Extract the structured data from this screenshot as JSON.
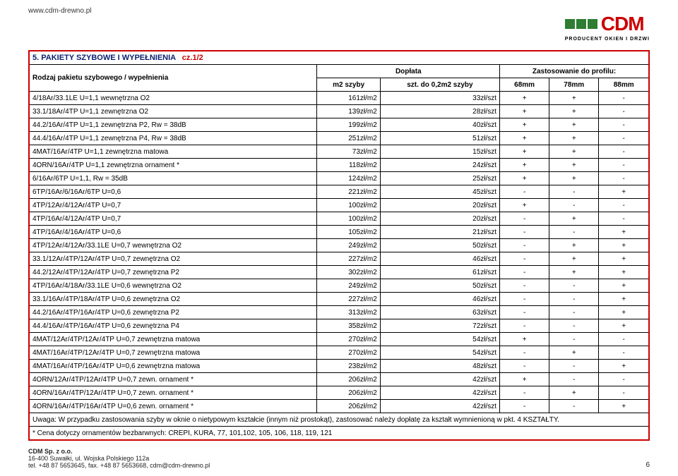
{
  "url": "www.cdm-drewno.pl",
  "logo": {
    "text": "CDM",
    "sub": "PRODUCENT OKIEN I DRZWI",
    "square_color": "#2e7d32",
    "text_color": "#c00000"
  },
  "title": {
    "main": "5. PAKIETY SZYBOWE I WYPEŁNIENIA",
    "part": "cz.1/2"
  },
  "header": {
    "col0": "Rodzaj pakietu szybowego / wypełnienia",
    "doplata": "Dopłata",
    "zast": "Zastosowanie do profilu:",
    "m2": "m2 szyby",
    "szt": "szt. do 0,2m2 szyby",
    "p68": "68mm",
    "p78": "78mm",
    "p88": "88mm"
  },
  "columns_align": [
    "left",
    "right",
    "right",
    "center",
    "center",
    "center"
  ],
  "rows": [
    [
      "4/18Ar/33.1LE U=1,1 wewnętrzna O2",
      "161zł/m2",
      "33zł/szt",
      "+",
      "+",
      "-"
    ],
    [
      "33.1/18Ar/4TP U=1,1 zewnętrzna O2",
      "139zł/m2",
      "28zł/szt",
      "+",
      "+",
      "-"
    ],
    [
      "44.2/16Ar/4TP U=1,1 zewnętrzna P2, Rw = 38dB",
      "199zł/m2",
      "40zł/szt",
      "+",
      "+",
      "-"
    ],
    [
      "44.4/16Ar/4TP U=1,1 zewnętrzna P4, Rw = 38dB",
      "251zł/m2",
      "51zł/szt",
      "+",
      "+",
      "-"
    ],
    [
      "4MAT/16Ar/4TP U=1,1 zewnętrzna matowa",
      "73zł/m2",
      "15zł/szt",
      "+",
      "+",
      "-"
    ],
    [
      "4ORN/16Ar/4TP U=1,1 zewnętrzna ornament *",
      "118zł/m2",
      "24zł/szt",
      "+",
      "+",
      "-"
    ],
    [
      "6/16Ar/6TP U=1,1, Rw = 35dB",
      "124zł/m2",
      "25zł/szt",
      "+",
      "+",
      "-"
    ],
    [
      "6TP/16Ar/6/16Ar/6TP U=0,6",
      "221zł/m2",
      "45zł/szt",
      "-",
      "-",
      "+"
    ],
    [
      "4TP/12Ar/4/12Ar/4TP U=0,7",
      "100zł/m2",
      "20zł/szt",
      "+",
      "-",
      "-"
    ],
    [
      "4TP/16Ar/4/12Ar/4TP U=0,7",
      "100zł/m2",
      "20zł/szt",
      "-",
      "+",
      "-"
    ],
    [
      "4TP/16Ar/4/16Ar/4TP U=0,6",
      "105zł/m2",
      "21zł/szt",
      "-",
      "-",
      "+"
    ],
    [
      "4TP/12Ar/4/12Ar/33.1LE U=0,7 wewnętrzna O2",
      "249zł/m2",
      "50zł/szt",
      "-",
      "+",
      "+"
    ],
    [
      "33.1/12Ar/4TP/12Ar/4TP U=0,7 zewnętrzna O2",
      "227zł/m2",
      "46zł/szt",
      "-",
      "+",
      "+"
    ],
    [
      "44.2/12Ar/4TP/12Ar/4TP U=0,7 zewnętrzna P2",
      "302zł/m2",
      "61zł/szt",
      "-",
      "+",
      "+"
    ],
    [
      "4TP/16Ar/4/18Ar/33.1LE U=0,6 wewnętrzna O2",
      "249zł/m2",
      "50zł/szt",
      "-",
      "-",
      "+"
    ],
    [
      "33.1/16Ar/4TP/18Ar/4TP U=0,6 zewnętrzna O2",
      "227zł/m2",
      "46zł/szt",
      "-",
      "-",
      "+"
    ],
    [
      "44.2/16Ar/4TP/16Ar/4TP U=0,6 zewnętrzna P2",
      "313zł/m2",
      "63zł/szt",
      "-",
      "-",
      "+"
    ],
    [
      "44.4/16Ar/4TP/16Ar/4TP U=0,6 zewnętrzna P4",
      "358zł/m2",
      "72zł/szt",
      "-",
      "-",
      "+"
    ],
    [
      "4MAT/12Ar/4TP/12Ar/4TP U=0,7 zewnętrzna matowa",
      "270zł/m2",
      "54zł/szt",
      "+",
      "-",
      "-"
    ],
    [
      "4MAT/16Ar/4TP/12Ar/4TP U=0,7 zewnętrzna matowa",
      "270zł/m2",
      "54zł/szt",
      "-",
      "+",
      "-"
    ],
    [
      "4MAT/16Ar/4TP/16Ar/4TP U=0,6 zewnętrzna matowa",
      "238zł/m2",
      "48zł/szt",
      "-",
      "-",
      "+"
    ],
    [
      "4ORN/12Ar/4TP/12Ar/4TP U=0,7 zewn. ornament *",
      "206zł/m2",
      "42zł/szt",
      "+",
      "-",
      "-"
    ],
    [
      "4ORN/16Ar/4TP/12Ar/4TP U=0,7 zewn. ornament *",
      "206zł/m2",
      "42zł/szt",
      "-",
      "+",
      "-"
    ],
    [
      "4ORN/16Ar/4TP/16Ar/4TP U=0,6 zewn. ornament *",
      "206zł/m2",
      "42zł/szt",
      "-",
      "-",
      "+"
    ]
  ],
  "note": "Uwaga: W przypadku zastosowania szyby w oknie o nietypowym kształcie (innym niż prostokąt),  zastosować należy dopłatę za kształt wymnienioną w pkt. 4 KSZTAŁTY.",
  "note_star": "* Cena dotyczy ornamentów bezbarwnych: CREPI, KURA, 77, 101,102, 105, 106, 118, 119, 121",
  "footer": {
    "line1": "CDM Sp. z o.o.",
    "line2": "16-400 Suwałki, ul. Wojska Polskiego 112a",
    "line3": "tel. +48 87 5653645, fax. +48 87 5653668, cdm@cdm-drewno.pl",
    "page": "6"
  }
}
